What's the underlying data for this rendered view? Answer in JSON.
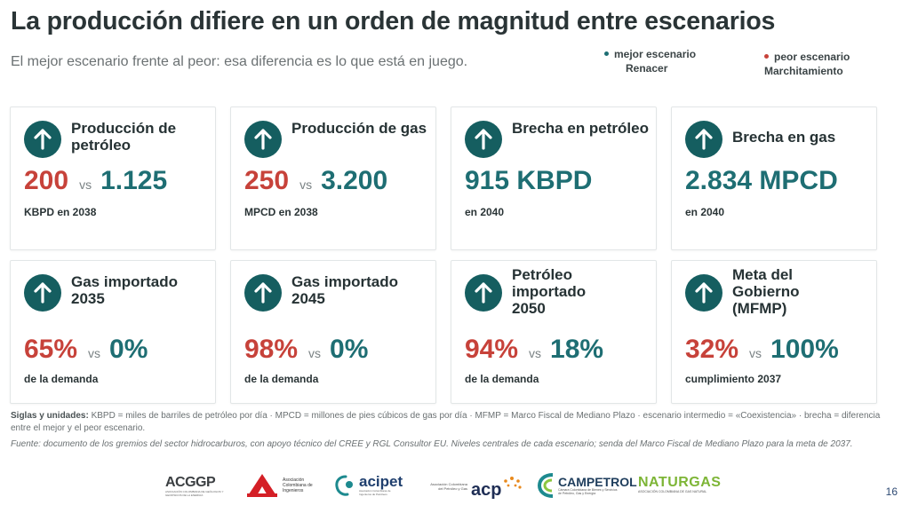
{
  "title": "La producción difiere en un orden de magnitud entre escenarios",
  "subtitle": "El mejor escenario frente al peor: esa diferencia es lo que está en juego.",
  "legend": {
    "best": {
      "label": "mejor escenario",
      "name": "Renacer",
      "color": "#1e6e73"
    },
    "worst": {
      "label": "peor escenario",
      "name": "Marchitamiento",
      "color": "#c7423a"
    }
  },
  "colors": {
    "accent": "#155e60",
    "best": "#1e6e73",
    "worst": "#c7423a"
  },
  "cards": [
    {
      "title": "Producción de petróleo",
      "worst": "200",
      "vs": "vs",
      "best": "1.125",
      "note": "KBPD en 2038",
      "icon": "arrow-up-icon"
    },
    {
      "title": "Producción de gas",
      "worst": "250",
      "vs": "vs",
      "best": "3.200",
      "note": "MPCD en 2038",
      "icon": "arrow-up-icon"
    },
    {
      "title": "Brecha en petróleo",
      "best": "915 KBPD",
      "note": "en 2040",
      "icon": "arrow-up-icon"
    },
    {
      "title": "Brecha en gas",
      "best": "2.834 MPCD",
      "note": "en 2040",
      "icon": "arrow-up-icon"
    },
    {
      "title": "Gas importado 2035",
      "worst": "65%",
      "vs": "vs",
      "best": "0%",
      "note": "de la demanda",
      "icon": "arrow-up-icon"
    },
    {
      "title": "Gas importado 2045",
      "worst": "98%",
      "vs": "vs",
      "best": "0%",
      "note": "de la demanda",
      "icon": "arrow-up-icon"
    },
    {
      "title": "Petróleo importado 2050",
      "worst": "94%",
      "vs": "vs",
      "best": "18%",
      "note": "de la demanda",
      "icon": "arrow-up-icon"
    },
    {
      "title": "Meta del Gobierno (MFMP)",
      "worst": "32%",
      "vs": "vs",
      "best": "100%",
      "note": "cumplimiento 2037",
      "icon": "arrow-up-icon"
    }
  ],
  "footnote": {
    "label": "Siglas y unidades:",
    "text": " KBPD = miles de barriles de petróleo por día · MPCD = millones de pies cúbicos de gas por día · MFMP = Marco Fiscal de Mediano Plazo · escenario intermedio = «Coexistencia» · brecha = diferencia entre el mejor y el peor escenario."
  },
  "source": "Fuente: documento de los gremios del sector hidrocarburos, con apoyo técnico del CREE y RGL Consultor EU. Niveles centrales de cada escenario; senda del Marco Fiscal de Mediano Plazo para la meta de 2037.",
  "logos": [
    {
      "name": "ACGGP",
      "caption": "ASOCIACIÓN COLOMBIANA DE GEÓLOGOS Y GEOFÍSICOS DE LA ENERGÍA"
    },
    {
      "name": "ACIEM",
      "caption": "Asociación Colombiana de Ingenieros"
    },
    {
      "name": "acipet",
      "caption": "Asociación Colombiana de Ingenieros de Petróleos"
    },
    {
      "name": "acp",
      "caption": "Asociación Colombiana del Petróleo y Gas"
    },
    {
      "name": "CAMPETROL",
      "caption": "Cámara Colombiana de Bienes y Servicios de Petróleo, Gas y Energía"
    },
    {
      "name": "NATURGAS",
      "caption": "ASOCIACIÓN COLOMBIANA DE GAS NATURAL"
    }
  ],
  "page_number": "16"
}
